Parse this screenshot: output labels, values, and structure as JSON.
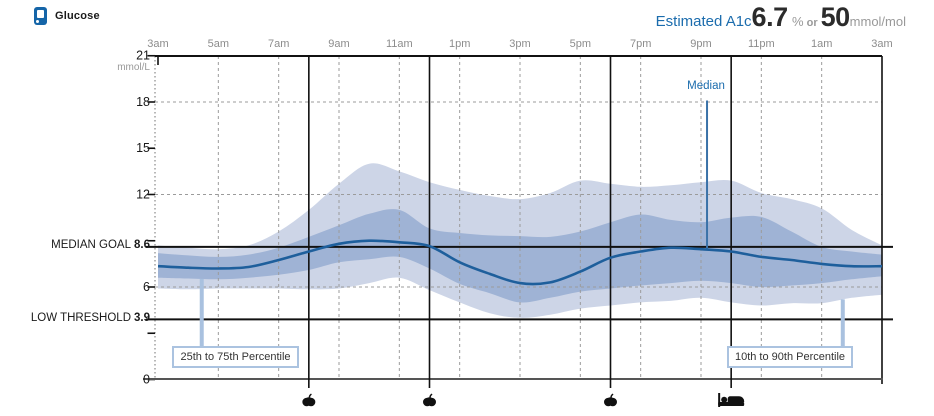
{
  "header": {
    "title": "Glucose",
    "estimated_a1c": {
      "label": "Estimated A1c",
      "percent_value": "6.7",
      "percent_unit": "%",
      "or_text": "or",
      "mmol_value": "50",
      "mmol_unit": "mmol/mol"
    }
  },
  "colors": {
    "accent_blue": "#1b6cad",
    "band_10_90": "#cdd5e7",
    "band_25_75": "#9fb3d5",
    "median_line": "#1e5f9c",
    "pointer_light": "#a9c1df",
    "pointer_median": "#3a72a8",
    "grid_dashed": "#9b9b9b",
    "axis_black": "#111111",
    "text_gray": "#8c8c8c"
  },
  "chart_data": {
    "type": "area",
    "description": "Ambulatory glucose profile: 24h median with 25th-75th and 10th-90th percentile bands",
    "y_axis": {
      "unit": "mmol/L",
      "min": 0,
      "max": 21,
      "tick_step": 3,
      "labeled_ticks": [
        "21",
        "18",
        "15",
        "12",
        "6",
        "0"
      ],
      "gridlines_dashed": [
        18,
        12,
        6
      ]
    },
    "x_axis": {
      "labels": [
        "3am",
        "5am",
        "7am",
        "9am",
        "11am",
        "1pm",
        "3pm",
        "5pm",
        "7pm",
        "9pm",
        "11pm",
        "1am",
        "3am"
      ],
      "label_hours": [
        3,
        5,
        7,
        9,
        11,
        13,
        15,
        17,
        19,
        21,
        23,
        25,
        27
      ]
    },
    "reference_lines": [
      {
        "label": "MEDIAN GOAL",
        "value": "8.6",
        "y": 8.6
      },
      {
        "label": "LOW THRESHOLD",
        "value": "3.9",
        "y": 3.9
      }
    ],
    "series": {
      "hours": [
        3,
        4,
        5,
        6,
        7,
        8,
        9,
        10,
        11,
        12,
        13,
        14,
        15,
        16,
        17,
        18,
        19,
        20,
        21,
        22,
        23,
        24,
        25,
        26,
        27
      ],
      "median": [
        7.35,
        7.25,
        7.2,
        7.3,
        7.75,
        8.3,
        8.8,
        9.0,
        8.9,
        8.65,
        7.6,
        6.85,
        6.25,
        6.3,
        7.0,
        7.9,
        8.3,
        8.55,
        8.45,
        8.3,
        7.95,
        7.75,
        7.5,
        7.35,
        7.35
      ],
      "p25": [
        6.6,
        6.55,
        6.5,
        6.6,
        6.8,
        7.1,
        7.6,
        7.8,
        7.95,
        7.2,
        6.2,
        5.6,
        5.0,
        5.3,
        5.7,
        5.9,
        6.1,
        6.25,
        6.4,
        6.25,
        6.0,
        6.1,
        6.25,
        6.5,
        6.7
      ],
      "p75": [
        8.2,
        8.05,
        7.95,
        8.1,
        8.55,
        9.25,
        10.0,
        10.75,
        11.0,
        9.8,
        9.5,
        9.35,
        9.3,
        9.25,
        9.6,
        10.2,
        10.7,
        10.35,
        10.2,
        10.5,
        10.55,
        9.6,
        8.6,
        8.3,
        8.1
      ],
      "p10": [
        5.9,
        5.85,
        5.9,
        5.9,
        5.9,
        5.85,
        5.9,
        6.25,
        6.6,
        5.8,
        5.0,
        4.3,
        4.0,
        4.2,
        4.6,
        4.8,
        5.0,
        5.1,
        5.3,
        5.0,
        4.8,
        4.95,
        4.95,
        5.3,
        5.5
      ],
      "p90": [
        8.7,
        8.55,
        8.45,
        8.7,
        9.6,
        11.0,
        12.7,
        14.0,
        13.5,
        12.8,
        12.3,
        11.9,
        11.7,
        12.1,
        12.9,
        12.7,
        12.5,
        12.6,
        12.8,
        12.9,
        12.1,
        11.7,
        11.1,
        9.7,
        8.7
      ]
    },
    "events": [
      {
        "hour": 8,
        "label": "8am",
        "icon": "apple"
      },
      {
        "hour": 12,
        "label": "12pm",
        "icon": "apple"
      },
      {
        "hour": 18,
        "label": "6pm",
        "icon": "apple"
      },
      {
        "hour": 22,
        "label": "10pm",
        "icon": "bed"
      }
    ],
    "annotations": {
      "median_callout": {
        "text": "Median",
        "hour": 21.2,
        "line_top_value": 18.1
      },
      "band_labels": [
        {
          "text": "25th to 75th Percentile",
          "pointer_hour": 4.45,
          "from_series": "p25"
        },
        {
          "text": "10th to 90th Percentile",
          "pointer_hour": 25.7,
          "from_series": "p10"
        }
      ]
    }
  }
}
